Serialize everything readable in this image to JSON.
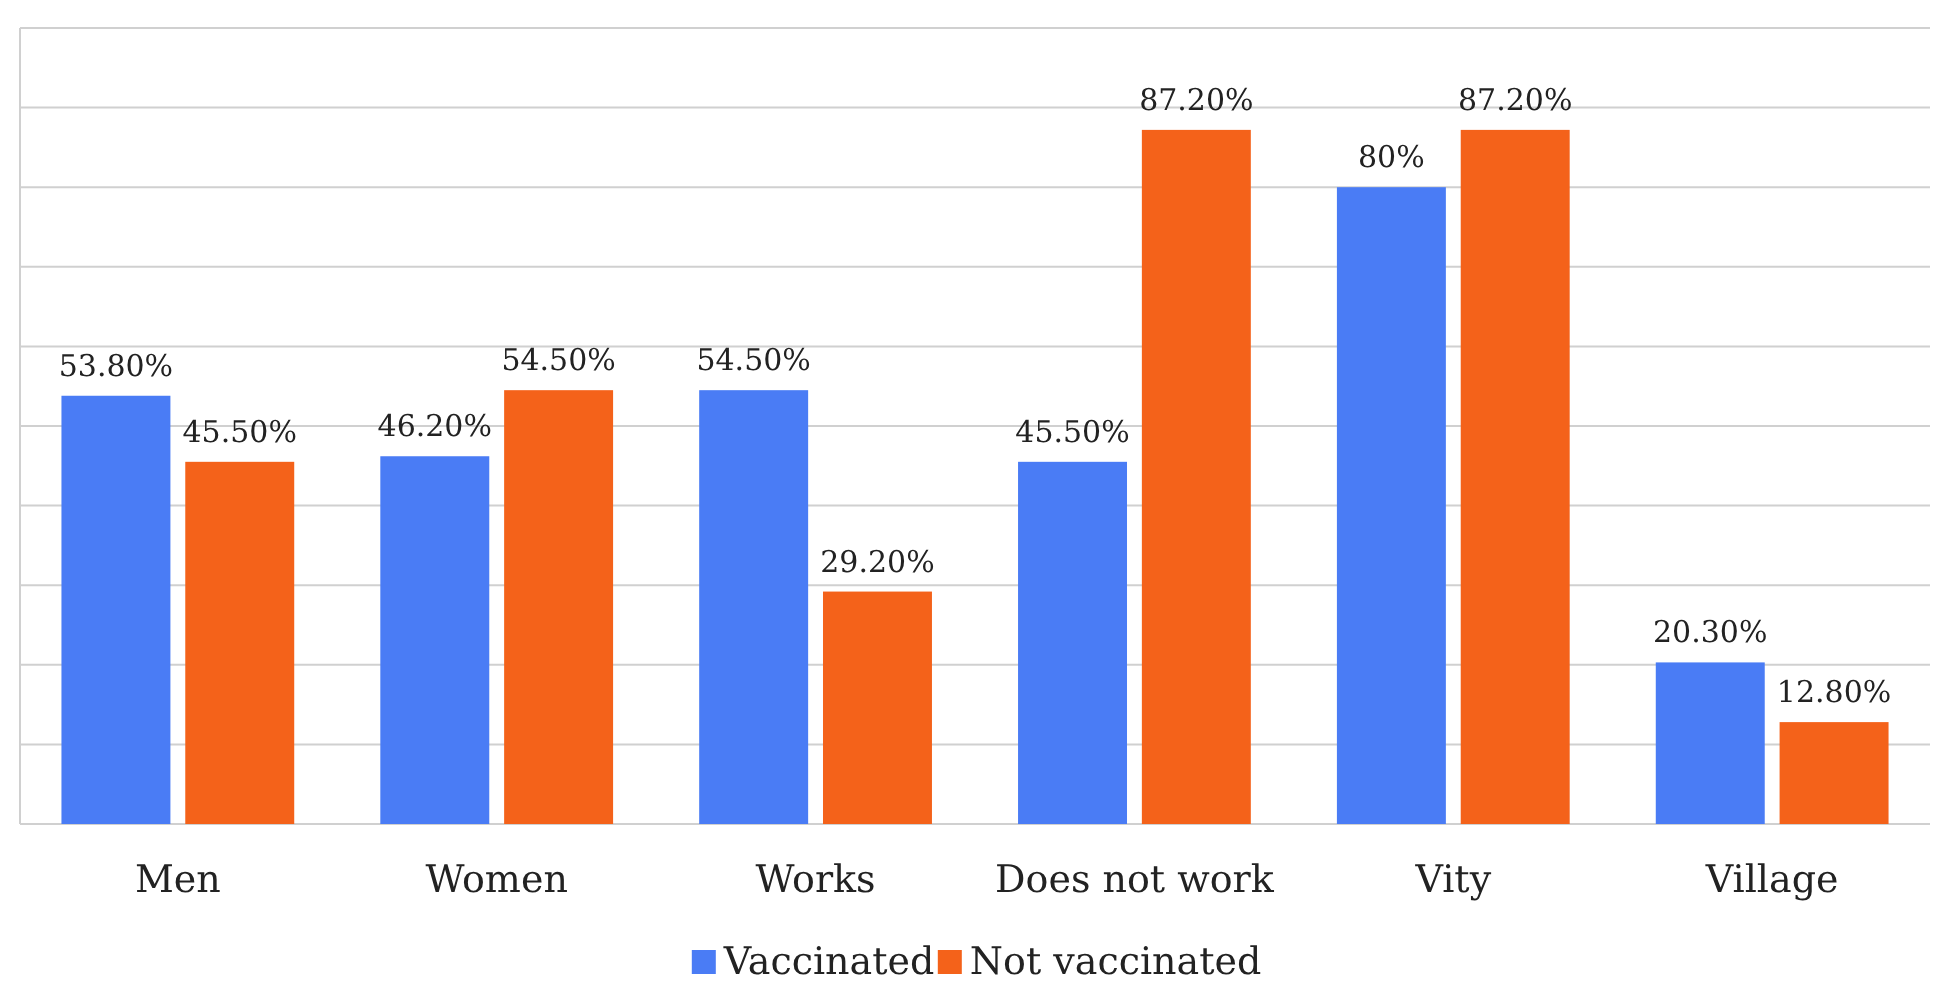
{
  "chart_data": {
    "type": "bar",
    "categories": [
      "Men",
      "Women",
      "Works",
      "Does not work",
      "Vity",
      "Village"
    ],
    "series": [
      {
        "name": "Vaccinated",
        "color": "#4a7cf5",
        "values": [
          53.8,
          46.2,
          54.5,
          45.5,
          80,
          20.3
        ],
        "value_labels": [
          "53.80%",
          "46.20%",
          "54.50%",
          "45.50%",
          "80%",
          "20.30%"
        ]
      },
      {
        "name": "Not vaccinated",
        "color": "#f4621a",
        "values": [
          45.5,
          54.5,
          29.2,
          87.2,
          87.2,
          12.8
        ],
        "value_labels": [
          "45.50%",
          "54.50%",
          "29.20%",
          "87.20%",
          "87.20%",
          "12.80%"
        ]
      }
    ],
    "ylim": [
      0,
      100
    ],
    "yticks": [
      {
        "value": 0,
        "label": null
      },
      {
        "value": 10,
        "label": null
      },
      {
        "value": 20,
        "label": null
      },
      {
        "value": 30,
        "label": null
      },
      {
        "value": 40,
        "label": null
      },
      {
        "value": 50,
        "label": null
      },
      {
        "value": 60,
        "label": null
      },
      {
        "value": 70,
        "label": null
      },
      {
        "value": 80,
        "label": null
      },
      {
        "value": 90,
        "label": null
      },
      {
        "value": 100,
        "label": null
      }
    ],
    "grid": "y",
    "legend": "bottom"
  }
}
